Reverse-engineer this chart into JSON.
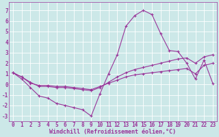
{
  "background_color": "#cce8e8",
  "grid_color": "#ffffff",
  "line_color": "#993399",
  "marker": "+",
  "marker_size": 3,
  "line_width": 0.8,
  "xlim": [
    -0.5,
    23.5
  ],
  "ylim": [
    -3.5,
    7.8
  ],
  "yticks": [
    -3,
    -2,
    -1,
    0,
    1,
    2,
    3,
    4,
    5,
    6,
    7
  ],
  "xticks": [
    0,
    1,
    2,
    3,
    4,
    5,
    6,
    7,
    8,
    9,
    10,
    11,
    12,
    13,
    14,
    15,
    16,
    17,
    18,
    19,
    20,
    21,
    22,
    23
  ],
  "xlabel": "Windchill (Refroidissement éolien,°C)",
  "xlabel_fontsize": 6.0,
  "tick_fontsize": 5.5,
  "s1_y": [
    1.1,
    0.5,
    -0.3,
    -1.1,
    -1.3,
    -1.8,
    -2.0,
    -2.2,
    -2.4,
    -3.0,
    -0.9,
    1.0,
    2.8,
    5.5,
    6.5,
    7.0,
    6.6,
    4.8,
    3.2,
    3.1,
    2.0,
    0.5,
    2.3,
    0.1
  ],
  "s2_y": [
    1.1,
    0.7,
    0.2,
    -0.2,
    -0.2,
    -0.3,
    -0.3,
    -0.4,
    -0.5,
    -0.6,
    -0.3,
    0.2,
    0.7,
    1.1,
    1.4,
    1.6,
    1.8,
    2.0,
    2.2,
    2.4,
    2.5,
    2.0,
    2.6,
    2.8
  ],
  "s3_y": [
    1.1,
    0.7,
    0.1,
    -0.1,
    -0.1,
    -0.2,
    -0.2,
    -0.3,
    -0.4,
    -0.5,
    -0.2,
    0.1,
    0.4,
    0.7,
    0.9,
    1.0,
    1.1,
    1.2,
    1.3,
    1.4,
    1.5,
    1.0,
    1.8,
    2.0
  ]
}
